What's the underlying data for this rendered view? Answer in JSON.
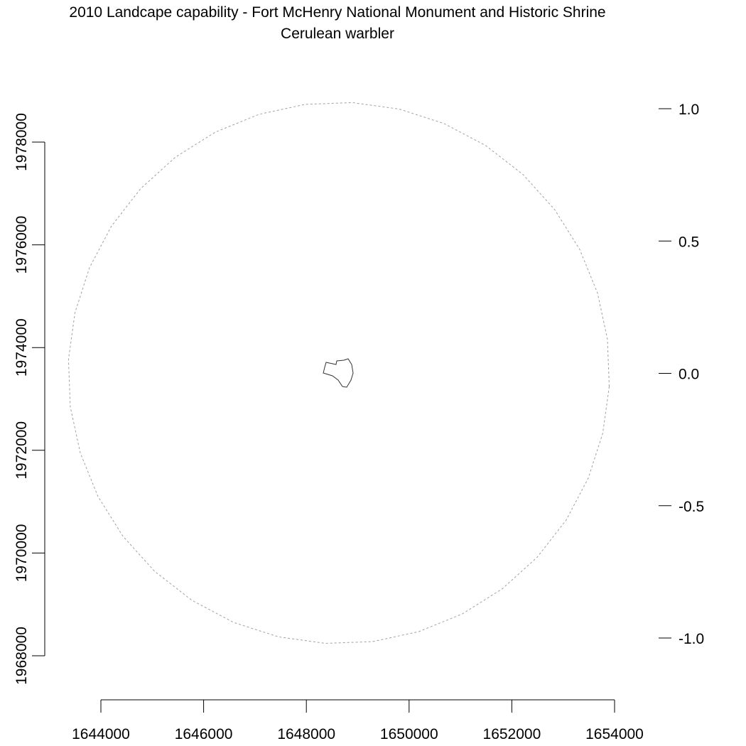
{
  "title": "2010 Landcape capability - Fort McHenry National Monument and Historic Shrine",
  "subtitle": "Cerulean warbler",
  "chart_data": {
    "type": "map",
    "title": "2010 Landcape capability - Fort McHenry National Monument and Historic Shrine",
    "subtitle": "Cerulean warbler",
    "xlim": [
      1644000,
      1654000
    ],
    "ylim": [
      1968000,
      1978000
    ],
    "x_ticks": [
      "1644000",
      "1646000",
      "1648000",
      "1650000",
      "1652000",
      "1654000"
    ],
    "y_ticks": [
      "1968000",
      "1970000",
      "1972000",
      "1974000",
      "1976000",
      "1978000"
    ],
    "legend_scale": {
      "placement": "right",
      "range": [
        -1.0,
        1.0
      ],
      "ticks": [
        "1.0",
        "0.5",
        "0.0",
        "-0.5",
        "-1.0"
      ]
    },
    "buffer_circle": {
      "center": [
        1648633,
        1973505
      ],
      "radius": 5270,
      "color": "#a0a0a0",
      "style": "dashed"
    },
    "park_boundary": {
      "color": "#333333",
      "points": [
        [
          1648385,
          1973712
        ],
        [
          1648578,
          1973671
        ],
        [
          1648592,
          1973740
        ],
        [
          1648730,
          1973754
        ],
        [
          1648813,
          1973781
        ],
        [
          1648882,
          1973671
        ],
        [
          1648910,
          1973505
        ],
        [
          1648869,
          1973367
        ],
        [
          1648786,
          1973228
        ],
        [
          1648703,
          1973242
        ],
        [
          1648620,
          1973367
        ],
        [
          1648509,
          1973450
        ],
        [
          1648329,
          1973505
        ],
        [
          1648357,
          1973615
        ]
      ]
    }
  }
}
